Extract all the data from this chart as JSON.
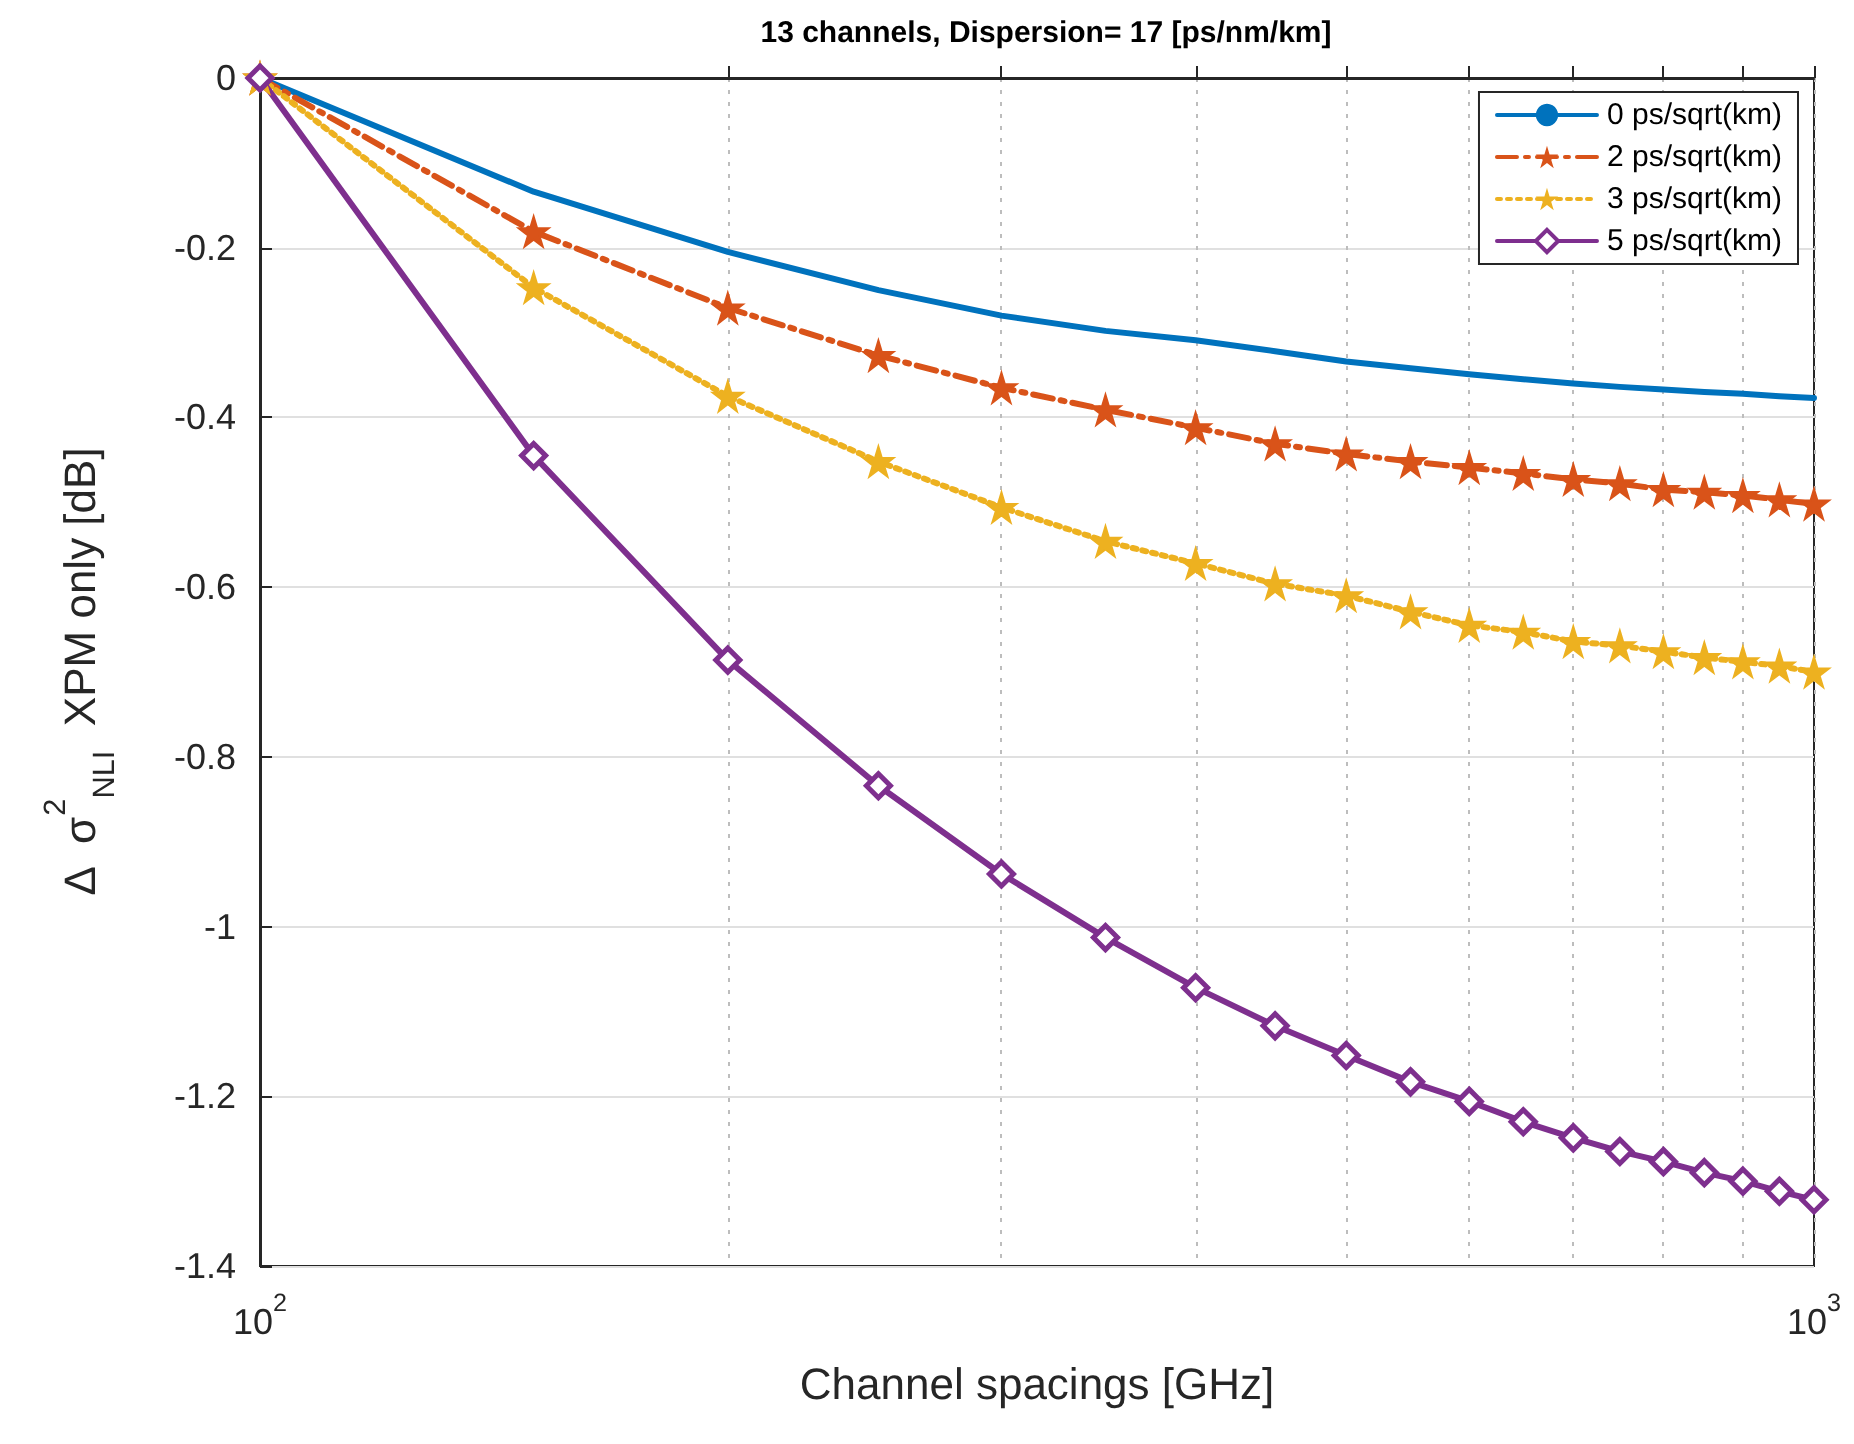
{
  "chart_data": {
    "type": "line",
    "title": "13 channels, Dispersion= 17 [ps/nm/km]",
    "xlabel": "Channel spacings [GHz]",
    "ylabel": "Δ  σ$^{2}$$_{NLI}$  XPM only [dB]",
    "log": "x",
    "grid": true,
    "legend": "top right",
    "x": [
      100,
      150,
      200,
      250,
      300,
      350,
      400,
      450,
      500,
      550,
      600,
      650,
      700,
      750,
      800,
      850,
      900,
      950,
      1000
    ],
    "xlim": [
      100,
      1000
    ],
    "xticks": [
      {
        "value": 100,
        "label": "10$^{2}$"
      },
      {
        "value": 200,
        "label": null
      },
      {
        "value": 300,
        "label": null
      },
      {
        "value": 400,
        "label": null
      },
      {
        "value": 500,
        "label": null
      },
      {
        "value": 600,
        "label": null
      },
      {
        "value": 700,
        "label": null
      },
      {
        "value": 800,
        "label": null
      },
      {
        "value": 900,
        "label": null
      },
      {
        "value": 1000,
        "label": "10$^{3}$"
      }
    ],
    "ylim": [
      -1.4,
      0
    ],
    "yticks": [
      -1.4,
      -1.2,
      -1,
      -0.8,
      -0.6,
      -0.4,
      -0.2,
      0
    ],
    "series": [
      {
        "name": "0 ps/sqrt(km)",
        "color": "#0072bd",
        "marker": "none",
        "line_style": "solid",
        "values": [
          0,
          -0.134,
          -0.205,
          -0.25,
          -0.28,
          -0.298,
          -0.309,
          -0.322,
          -0.334,
          -0.342,
          -0.349,
          -0.355,
          -0.36,
          -0.364,
          -0.367,
          -0.37,
          -0.372,
          -0.375,
          -0.377
        ]
      },
      {
        "name": "2 ps/sqrt(km)",
        "color": "#d95319",
        "marker": "star",
        "line_style": "dashed",
        "values": [
          0,
          -0.181,
          -0.271,
          -0.327,
          -0.365,
          -0.391,
          -0.412,
          -0.431,
          -0.443,
          -0.452,
          -0.459,
          -0.466,
          -0.473,
          -0.478,
          -0.485,
          -0.488,
          -0.492,
          -0.497,
          -0.502
        ]
      },
      {
        "name": "3 ps/sqrt(km)",
        "color": "#edb120",
        "marker": "star",
        "line_style": "dotted",
        "values": [
          0,
          -0.247,
          -0.375,
          -0.452,
          -0.506,
          -0.546,
          -0.572,
          -0.596,
          -0.61,
          -0.629,
          -0.645,
          -0.653,
          -0.664,
          -0.669,
          -0.676,
          -0.683,
          -0.688,
          -0.693,
          -0.7
        ]
      },
      {
        "name": "5 ps/sqrt(km)",
        "color": "#7e2f8e",
        "marker": "diamond",
        "line_style": "solid",
        "values": [
          0,
          -0.445,
          -0.686,
          -0.834,
          -0.938,
          -1.013,
          -1.072,
          -1.117,
          -1.152,
          -1.183,
          -1.206,
          -1.23,
          -1.249,
          -1.265,
          -1.277,
          -1.29,
          -1.3,
          -1.312,
          -1.322
        ]
      }
    ]
  }
}
